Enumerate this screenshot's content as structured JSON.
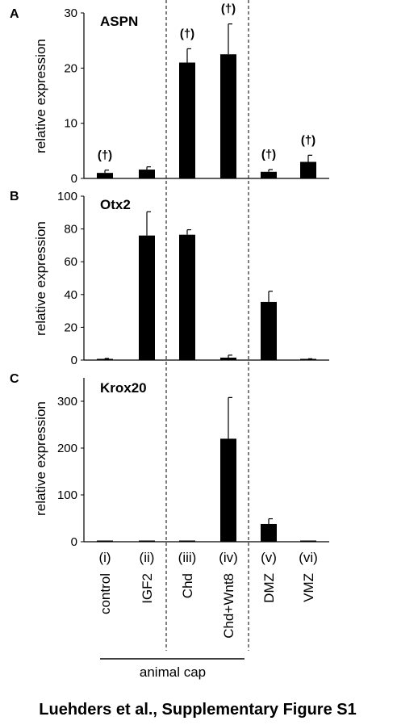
{
  "chart_data": [
    {
      "type": "bar",
      "panel": "A",
      "title": "ASPN",
      "ylabel": "relative expression",
      "ylim": [
        0,
        30
      ],
      "yticks": [
        "0",
        "10",
        "20",
        "30"
      ],
      "categories": [
        "control",
        "IGF2",
        "Chd",
        "Chd+Wnt8",
        "DMZ",
        "VMZ"
      ],
      "values": [
        1.0,
        1.6,
        21.0,
        22.5,
        1.2,
        3.0
      ],
      "errors": [
        0.5,
        0.5,
        2.5,
        5.5,
        0.4,
        1.2
      ],
      "annotations": [
        "(†)",
        "",
        "(†)",
        "(†)",
        "(†)",
        "(†)"
      ]
    },
    {
      "type": "bar",
      "panel": "B",
      "title": "Otx2",
      "ylabel": "relative expression",
      "ylim": [
        0,
        100
      ],
      "yticks": [
        "0",
        "20",
        "40",
        "60",
        "80",
        "100"
      ],
      "categories": [
        "control",
        "IGF2",
        "Chd",
        "Chd+Wnt8",
        "DMZ",
        "VMZ"
      ],
      "values": [
        0.5,
        76,
        76.5,
        1.5,
        35.5,
        0.5
      ],
      "errors": [
        0.5,
        14.5,
        3,
        1.5,
        6.5,
        0.3
      ],
      "annotations": [
        "",
        "",
        "",
        "",
        "",
        ""
      ]
    },
    {
      "type": "bar",
      "panel": "C",
      "title": "Krox20",
      "ylabel": "relative expression",
      "ylim": [
        0,
        350
      ],
      "yticks": [
        "0",
        "100",
        "200",
        "300"
      ],
      "categories": [
        "control",
        "IGF2",
        "Chd",
        "Chd+Wnt8",
        "DMZ",
        "VMZ"
      ],
      "values": [
        1,
        1,
        1,
        220,
        38,
        1
      ],
      "errors": [
        0.5,
        0.5,
        0.5,
        88,
        11,
        0.5
      ],
      "annotations": [
        "",
        "",
        "",
        "",
        "",
        ""
      ]
    }
  ],
  "conditions": {
    "numerals": [
      "(i)",
      "(ii)",
      "(iii)",
      "(iv)",
      "(v)",
      "(vi)"
    ],
    "labels": [
      "control",
      "IGF2",
      "Chd",
      "Chd+Wnt8",
      "DMZ",
      "VMZ"
    ]
  },
  "group_label": "animal cap",
  "caption": "Luehders et al., Supplementary Figure S1"
}
